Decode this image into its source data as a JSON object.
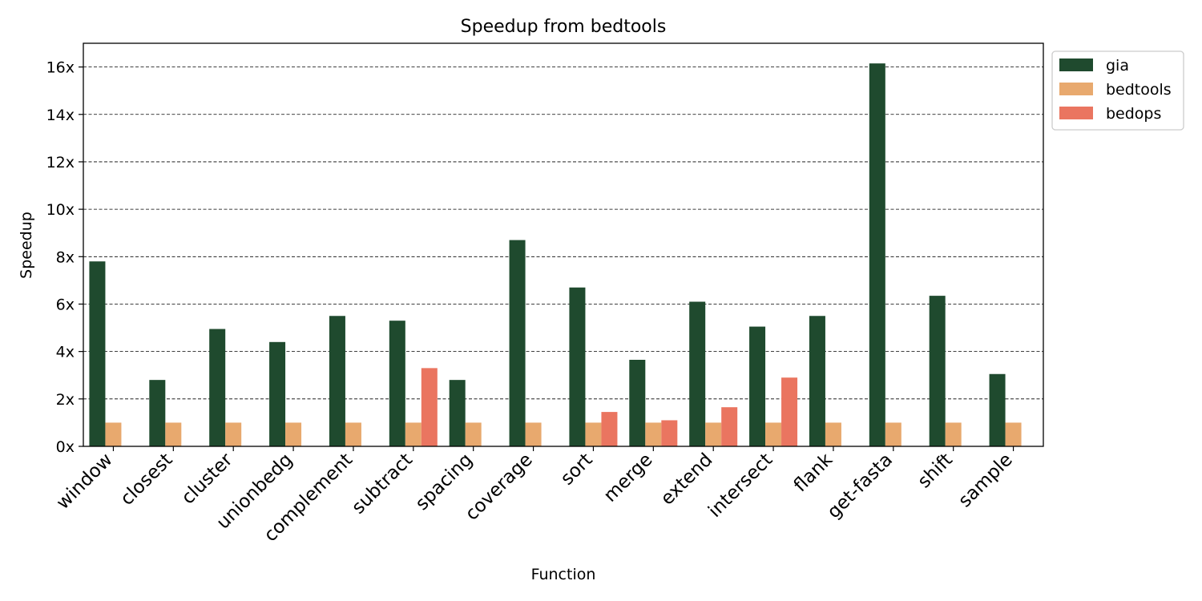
{
  "chart_data": {
    "type": "bar",
    "title": "Speedup from bedtools",
    "xlabel": "Function",
    "ylabel": "Speedup",
    "ylim": [
      0,
      17
    ],
    "yticks": [
      0,
      2,
      4,
      6,
      8,
      10,
      12,
      14,
      16
    ],
    "ytick_labels": [
      "0x",
      "2x",
      "4x",
      "6x",
      "8x",
      "10x",
      "12x",
      "14x",
      "16x"
    ],
    "grid": "horizontal dashed",
    "legend_position": "outside top-right",
    "categories": [
      "window",
      "closest",
      "cluster",
      "unionbedg",
      "complement",
      "subtract",
      "spacing",
      "coverage",
      "sort",
      "merge",
      "extend",
      "intersect",
      "flank",
      "get-fasta",
      "shift",
      "sample"
    ],
    "series": [
      {
        "name": "gia",
        "color": "#1f4a2e",
        "values": [
          7.8,
          2.8,
          4.95,
          4.4,
          5.5,
          5.3,
          2.8,
          8.7,
          6.7,
          3.65,
          6.1,
          5.05,
          5.5,
          16.15,
          6.35,
          3.05
        ]
      },
      {
        "name": "bedtools",
        "color": "#e8a96e",
        "values": [
          1,
          1,
          1,
          1,
          1,
          1,
          1,
          1,
          1,
          1,
          1,
          1,
          1,
          1,
          1,
          1
        ]
      },
      {
        "name": "bedops",
        "color": "#ea7560",
        "values": [
          null,
          null,
          null,
          null,
          null,
          3.3,
          null,
          null,
          1.45,
          1.1,
          1.65,
          2.9,
          null,
          null,
          null,
          null
        ]
      }
    ]
  }
}
